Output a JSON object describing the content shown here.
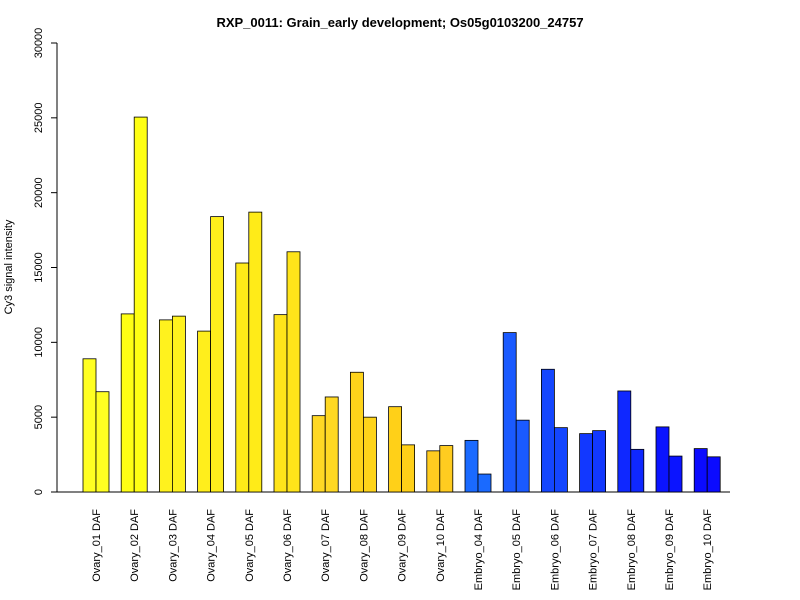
{
  "chart_data": {
    "type": "bar",
    "title": "RXP_0011: Grain_early development; Os05g0103200_24757",
    "xlabel": "",
    "ylabel": "Cy3 signal intensity",
    "ylim": [
      0,
      30000
    ],
    "yticks": [
      0,
      5000,
      10000,
      15000,
      20000,
      25000,
      30000
    ],
    "grid": false,
    "legend": "none",
    "categories": [
      "Ovary_01 DAF",
      "Ovary_02 DAF",
      "Ovary_03 DAF",
      "Ovary_04 DAF",
      "Ovary_05 DAF",
      "Ovary_06 DAF",
      "Ovary_07 DAF",
      "Ovary_08 DAF",
      "Ovary_09 DAF",
      "Ovary_10 DAF",
      "Embryo_04 DAF",
      "Embryo_05 DAF",
      "Embryo_06 DAF",
      "Embryo_07 DAF",
      "Embryo_08 DAF",
      "Embryo_09 DAF",
      "Embryo_10 DAF"
    ],
    "colors": [
      "#ffff22",
      "#ffff14",
      "#fff21e",
      "#ffee1c",
      "#ffeb18",
      "#ffe41a",
      "#ffd824",
      "#ffd41a",
      "#ffd018",
      "#ffcc20",
      "#1a6aff",
      "#1a5aff",
      "#1446ff",
      "#1238ff",
      "#0f28ff",
      "#0b14ff",
      "#0b0bff"
    ],
    "series": [
      {
        "values": [
          8900,
          11900,
          11500,
          10750,
          15300,
          11850,
          5100,
          8000,
          5700,
          2750,
          3450,
          10650,
          8200,
          3900,
          6750,
          4350,
          2900
        ]
      },
      {
        "values": [
          6700,
          25050,
          11750,
          18400,
          18700,
          16050,
          6350,
          5000,
          3150,
          3100,
          1200,
          4800,
          4300,
          4100,
          2850,
          2400,
          2350
        ]
      }
    ]
  }
}
